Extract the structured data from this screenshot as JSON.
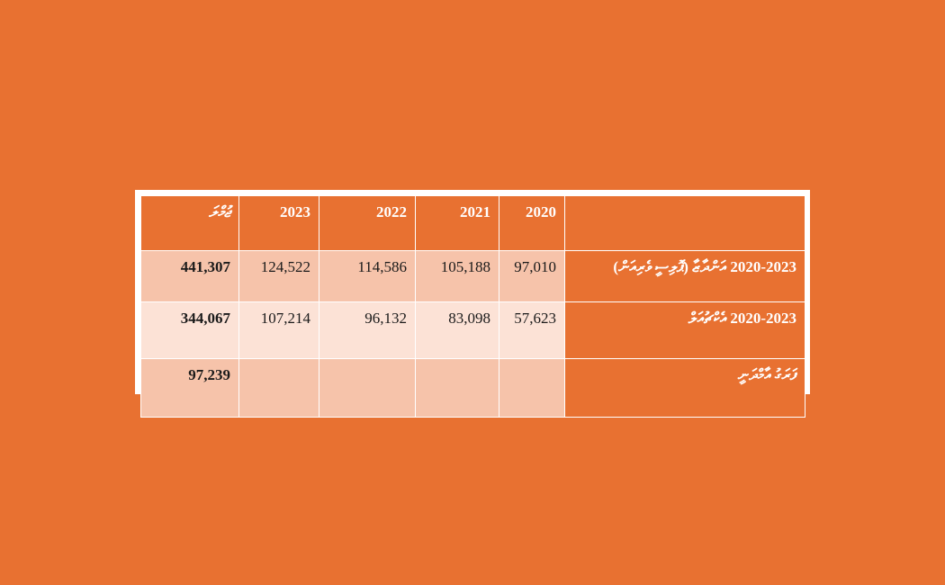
{
  "table": {
    "columns": [
      "ޖުމްލަ",
      "2023",
      "2022",
      "2021",
      "2020",
      ""
    ],
    "rows": [
      {
        "total": "441,307",
        "cells": [
          "124,522",
          "114,586",
          "105,188",
          "97,010"
        ],
        "label": "2020-2023 އަންދާޒާ (ޕޮލިސީ ވެރިއަން)"
      },
      {
        "total": "344,067",
        "cells": [
          "107,214",
          "96,132",
          "83,098",
          "57,623"
        ],
        "label": "2020-2023 އެކްޗުއަލް"
      },
      {
        "total": "97,239",
        "cells": [
          "",
          "",
          "",
          ""
        ],
        "label": "ފަރަގު އާމްދަނީ"
      }
    ]
  }
}
